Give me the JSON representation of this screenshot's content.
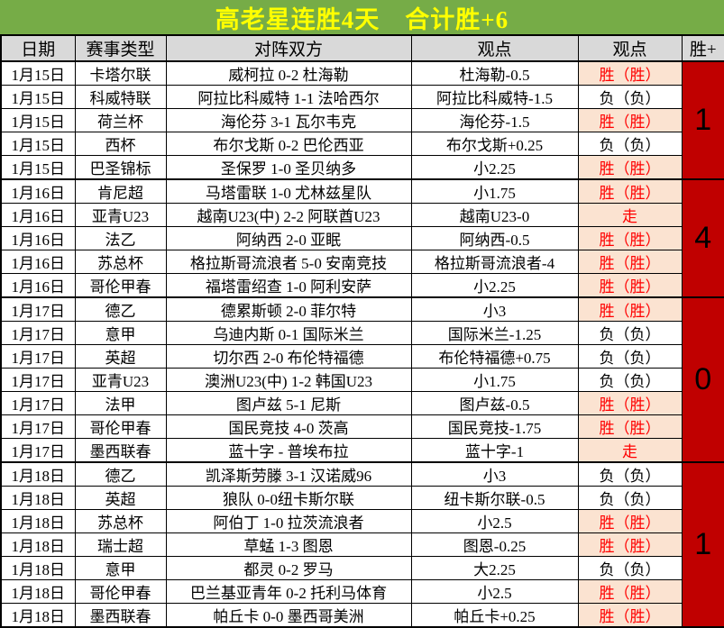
{
  "title": {
    "text": "高老星连胜4天　合计胜+6"
  },
  "colors": {
    "green": "#76AC47",
    "yellow": "#FFFF00",
    "darkred": "#C00000",
    "peach": "#FBE3D1",
    "red": "#FF0000",
    "gray": "#D9D9D9",
    "ink": "#000000"
  },
  "table": {
    "headers": [
      "日期",
      "赛事类型",
      "对阵双方",
      "观点",
      "观点",
      "胜+"
    ],
    "rows": [
      {
        "date": "1月15日",
        "league": "卡塔尔联",
        "match": "威柯拉 0-2 杜海勒",
        "view": "杜海勒-0.5",
        "result": "胜（胜）",
        "result_type": "win"
      },
      {
        "date": "1月15日",
        "league": "科威特联",
        "match": "阿拉比科威特 1-1 法哈西尔",
        "view": "阿拉比科威特-1.5",
        "result": "负（负）",
        "result_type": "loss"
      },
      {
        "date": "1月15日",
        "league": "荷兰杯",
        "match": "海伦芬 3-1 瓦尔韦克",
        "view": "海伦芬-1.5",
        "result": "胜（胜）",
        "result_type": "win"
      },
      {
        "date": "1月15日",
        "league": "西杯",
        "match": "布尔戈斯 0-2 巴伦西亚",
        "view": "布尔戈斯+0.25",
        "result": "负（负）",
        "result_type": "loss"
      },
      {
        "date": "1月15日",
        "league": "巴圣锦标",
        "match": "圣保罗 1-0 圣贝纳多",
        "view": "小2.25",
        "result": "胜（胜）",
        "result_type": "win"
      },
      {
        "date": "1月16日",
        "league": "肯尼超",
        "match": "马塔雷联 1-0 尤林兹星队",
        "view": "小1.75",
        "result": "胜（胜）",
        "result_type": "win"
      },
      {
        "date": "1月16日",
        "league": "亚青U23",
        "match": "越南U23(中) 2-2 阿联酋U23",
        "view": "越南U23-0",
        "result": "走",
        "result_type": "push"
      },
      {
        "date": "1月16日",
        "league": "法乙",
        "match": "阿纳西 2-0 亚眠",
        "view": "阿纳西-0.5",
        "result": "胜（胜）",
        "result_type": "win"
      },
      {
        "date": "1月16日",
        "league": "苏总杯",
        "match": "格拉斯哥流浪者 5-0 安南竞技",
        "view": "格拉斯哥流浪者-4",
        "result": "胜（胜）",
        "result_type": "win"
      },
      {
        "date": "1月16日",
        "league": "哥伦甲春",
        "match": "福塔雷绍查 1-0 阿利安萨",
        "view": "小2.25",
        "result": "胜（胜）",
        "result_type": "win"
      },
      {
        "date": "1月17日",
        "league": "德乙",
        "match": "德累斯顿 2-0 菲尔特",
        "view": "小3",
        "result": "胜（胜）",
        "result_type": "win"
      },
      {
        "date": "1月17日",
        "league": "意甲",
        "match": "乌迪内斯 0-1 国际米兰",
        "view": "国际米兰-1.25",
        "result": "负（负）",
        "result_type": "loss"
      },
      {
        "date": "1月17日",
        "league": "英超",
        "match": "切尔西 2-0 布伦特福德",
        "view": "布伦特福德+0.75",
        "result": "负（负）",
        "result_type": "loss"
      },
      {
        "date": "1月17日",
        "league": "亚青U23",
        "match": "澳洲U23(中) 1-2 韩国U23",
        "view": "小1.75",
        "result": "负（负）",
        "result_type": "loss"
      },
      {
        "date": "1月17日",
        "league": "法甲",
        "match": "图卢兹 5-1 尼斯",
        "view": "图卢兹-0.5",
        "result": "胜（胜）",
        "result_type": "win"
      },
      {
        "date": "1月17日",
        "league": "哥伦甲春",
        "match": "国民竞技 4-0 茨高",
        "view": "国民竞技-1.75",
        "result": "胜（胜）",
        "result_type": "win"
      },
      {
        "date": "1月17日",
        "league": "墨西联春",
        "match": "蓝十字 - 普埃布拉",
        "view": "蓝十字-1",
        "result": "走",
        "result_type": "push"
      },
      {
        "date": "1月18日",
        "league": "德乙",
        "match": "凯泽斯劳滕 3-1 汉诺威96",
        "view": "小3",
        "result": "负（负）",
        "result_type": "loss"
      },
      {
        "date": "1月18日",
        "league": "英超",
        "match": "狼队 0-0纽卡斯尔联",
        "view": "纽卡斯尔联-0.5",
        "result": "负（负）",
        "result_type": "loss"
      },
      {
        "date": "1月18日",
        "league": "苏总杯",
        "match": "阿伯丁 1-0 拉茨流浪者",
        "view": "小2.5",
        "result": "胜（胜）",
        "result_type": "win"
      },
      {
        "date": "1月18日",
        "league": "瑞士超",
        "match": "草蜢 1-3 图恩",
        "view": "图恩-0.25",
        "result": "胜（胜）",
        "result_type": "win"
      },
      {
        "date": "1月18日",
        "league": "意甲",
        "match": "都灵 0-2 罗马",
        "view": "大2.25",
        "result": "负（负）",
        "result_type": "loss"
      },
      {
        "date": "1月18日",
        "league": "哥伦甲春",
        "match": "巴兰基亚青年 0-2 托利马体育",
        "view": "小2.5",
        "result": "胜（胜）",
        "result_type": "win"
      },
      {
        "date": "1月18日",
        "league": "墨西联春",
        "match": "帕丘卡 0-0 墨西哥美洲",
        "view": "帕丘卡+0.25",
        "result": "胜（胜）",
        "result_type": "win"
      }
    ],
    "groups": [
      {
        "start": 0,
        "count": 5,
        "net": "1"
      },
      {
        "start": 5,
        "count": 5,
        "net": "4"
      },
      {
        "start": 10,
        "count": 7,
        "net": "0"
      },
      {
        "start": 17,
        "count": 7,
        "net": "1"
      }
    ]
  }
}
